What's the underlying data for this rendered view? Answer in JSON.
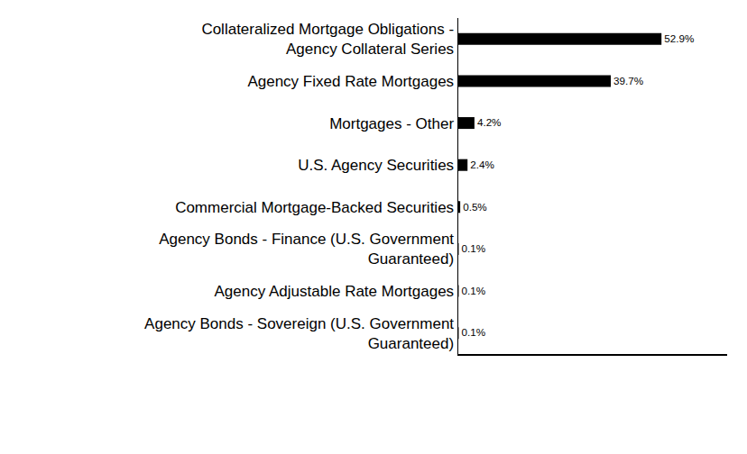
{
  "chart_data": {
    "type": "bar",
    "orientation": "horizontal",
    "categories": [
      "Collateralized Mortgage Obligations - Agency Collateral Series",
      "Agency Fixed Rate Mortgages",
      "Mortgages - Other",
      "U.S. Agency Securities",
      "Commercial Mortgage-Backed Securities",
      "Agency Bonds - Finance (U.S. Government Guaranteed)",
      "Agency Adjustable Rate Mortgages",
      "Agency Bonds - Sovereign (U.S. Government Guaranteed)"
    ],
    "values": [
      52.9,
      39.7,
      4.2,
      2.4,
      0.5,
      0.1,
      0.1,
      0.1
    ],
    "value_labels": [
      "52.9%",
      "39.7%",
      "4.2%",
      "2.4%",
      "0.5%",
      "0.1%",
      "0.1%",
      "0.1%"
    ],
    "color": "#000000",
    "xlim": [
      0,
      70
    ],
    "xticks": [],
    "data_labels": true,
    "tick_labels": "y",
    "grid": false
  }
}
